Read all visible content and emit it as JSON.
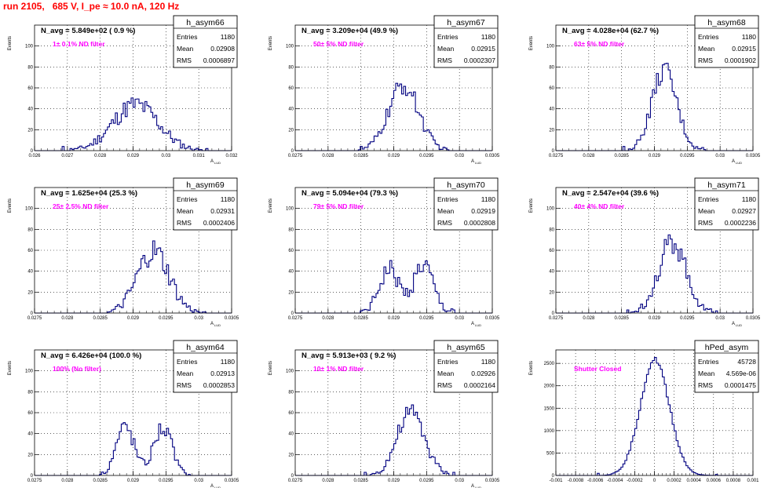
{
  "page": {
    "run_title": "run 2105,   685 V, I_pe ≈ 10.0 nA, 120 Hz"
  },
  "stats_labels": [
    "Entries",
    "Mean",
    "RMS"
  ],
  "colors": {
    "histogram_line": "#000080",
    "annotation_magenta": "#ff00ff",
    "title_red": "#ff0000",
    "grid": "#000000"
  },
  "chart_data": [
    {
      "type": "histogram",
      "name": "h_asym66",
      "navg_label": "N_avg = 5.849e+02 ( 0.9 %)",
      "annotation": "1± 0.1% ND filter",
      "stats": {
        "entries": "1180",
        "mean": "0.02908",
        "rms": "0.0006897"
      },
      "ylabel": "Events",
      "xlabel": "A_LUD",
      "xlim": [
        0.026,
        0.032
      ],
      "ylim": [
        0,
        120
      ],
      "xticks": [
        "0.026",
        "0.027",
        "0.028",
        "0.029",
        "0.03",
        "0.031",
        "0.032"
      ],
      "yticks": [
        "0",
        "20",
        "40",
        "60",
        "80",
        "100"
      ],
      "grid": true,
      "shape": {
        "peaks": [
          {
            "mu": 0.02908,
            "sigma": 0.00069,
            "height": 44
          }
        ],
        "noise": 7
      }
    },
    {
      "type": "histogram",
      "name": "h_asym67",
      "navg_label": "N_avg = 3.209e+04 (49.9 %)",
      "annotation": "50± 5% ND filter",
      "stats": {
        "entries": "1180",
        "mean": "0.02915",
        "rms": "0.0002307"
      },
      "ylabel": "Events",
      "xlabel": "A_LUD",
      "xlim": [
        0.0275,
        0.0305
      ],
      "ylim": [
        0,
        120
      ],
      "xticks": [
        "0.0275",
        "0.028",
        "0.0285",
        "0.029",
        "0.0295",
        "0.03",
        "0.0305"
      ],
      "yticks": [
        "0",
        "20",
        "40",
        "60",
        "80",
        "100"
      ],
      "grid": true,
      "shape": {
        "peaks": [
          {
            "mu": 0.02915,
            "sigma": 0.00023,
            "height": 62
          }
        ],
        "noise": 7
      }
    },
    {
      "type": "histogram",
      "name": "h_asym68",
      "navg_label": "N_avg = 4.028e+04 (62.7 %)",
      "annotation": "63± 5% ND filter",
      "stats": {
        "entries": "1180",
        "mean": "0.02915",
        "rms": "0.0001902"
      },
      "ylabel": "Events",
      "xlabel": "A_LUD",
      "xlim": [
        0.0275,
        0.0305
      ],
      "ylim": [
        0,
        120
      ],
      "xticks": [
        "0.0275",
        "0.028",
        "0.0285",
        "0.029",
        "0.0295",
        "0.03",
        "0.0305"
      ],
      "yticks": [
        "0",
        "20",
        "40",
        "60",
        "80",
        "100"
      ],
      "grid": true,
      "shape": {
        "peaks": [
          {
            "mu": 0.02915,
            "sigma": 0.00019,
            "height": 76
          }
        ],
        "noise": 7
      }
    },
    {
      "type": "histogram",
      "name": "h_asym69",
      "navg_label": "N_avg = 1.625e+04 (25.3 %)",
      "annotation": "25± 2.5% ND filter",
      "stats": {
        "entries": "1180",
        "mean": "0.02931",
        "rms": "0.0002406"
      },
      "ylabel": "Events",
      "xlabel": "A_LUD",
      "xlim": [
        0.0275,
        0.0305
      ],
      "ylim": [
        0,
        120
      ],
      "xticks": [
        "0.0275",
        "0.028",
        "0.0285",
        "0.029",
        "0.0295",
        "0.03",
        "0.0305"
      ],
      "yticks": [
        "0",
        "20",
        "40",
        "60",
        "80",
        "100"
      ],
      "grid": true,
      "shape": {
        "peaks": [
          {
            "mu": 0.02931,
            "sigma": 0.00024,
            "height": 58
          }
        ],
        "noise": 9
      }
    },
    {
      "type": "histogram",
      "name": "h_asym70",
      "navg_label": "N_avg = 5.094e+04 (79.3 %)",
      "annotation": "79± 5% ND filter",
      "stats": {
        "entries": "1180",
        "mean": "0.02919",
        "rms": "0.0002808"
      },
      "ylabel": "Events",
      "xlabel": "A_LUD",
      "xlim": [
        0.0275,
        0.0305
      ],
      "ylim": [
        0,
        120
      ],
      "xticks": [
        "0.0275",
        "0.028",
        "0.0285",
        "0.029",
        "0.0295",
        "0.03",
        "0.0305"
      ],
      "yticks": [
        "0",
        "20",
        "40",
        "60",
        "80",
        "100"
      ],
      "grid": true,
      "shape": {
        "peaks": [
          {
            "mu": 0.02893,
            "sigma": 0.00015,
            "height": 42
          },
          {
            "mu": 0.02945,
            "sigma": 0.00015,
            "height": 46
          }
        ],
        "noise": 7
      }
    },
    {
      "type": "histogram",
      "name": "h_asym71",
      "navg_label": "N_avg = 2.547e+04 (39.6 %)",
      "annotation": "40± 4% ND filter",
      "stats": {
        "entries": "1180",
        "mean": "0.02927",
        "rms": "0.0002236"
      },
      "ylabel": "Events",
      "xlabel": "A_LUD",
      "xlim": [
        0.0275,
        0.0305
      ],
      "ylim": [
        0,
        120
      ],
      "xticks": [
        "0.0275",
        "0.028",
        "0.0285",
        "0.029",
        "0.0295",
        "0.03",
        "0.0305"
      ],
      "yticks": [
        "0",
        "20",
        "40",
        "60",
        "80",
        "100"
      ],
      "grid": true,
      "shape": {
        "peaks": [
          {
            "mu": 0.02927,
            "sigma": 0.00021,
            "height": 68
          }
        ],
        "noise": 8
      }
    },
    {
      "type": "histogram",
      "name": "h_asym64",
      "navg_label": "N_avg = 6.426e+04 (100.0 %)",
      "annotation": "100% (No filter)",
      "stats": {
        "entries": "1180",
        "mean": "0.02913",
        "rms": "0.0002853"
      },
      "ylabel": "Events",
      "xlabel": "A_LUD",
      "xlim": [
        0.0275,
        0.0305
      ],
      "ylim": [
        0,
        120
      ],
      "xticks": [
        "0.0275",
        "0.028",
        "0.0285",
        "0.029",
        "0.0295",
        "0.03",
        "0.0305"
      ],
      "yticks": [
        "0",
        "20",
        "40",
        "60",
        "80",
        "100"
      ],
      "grid": true,
      "shape": {
        "peaks": [
          {
            "mu": 0.02888,
            "sigma": 0.00014,
            "height": 47
          },
          {
            "mu": 0.02945,
            "sigma": 0.00014,
            "height": 46
          }
        ],
        "noise": 6
      }
    },
    {
      "type": "histogram",
      "name": "h_asym65",
      "navg_label": "N_avg = 5.913e+03 ( 9.2 %)",
      "annotation": "10± 1% ND filter",
      "stats": {
        "entries": "1180",
        "mean": "0.02926",
        "rms": "0.0002164"
      },
      "ylabel": "Events",
      "xlabel": "A_LUD",
      "xlim": [
        0.0275,
        0.0305
      ],
      "ylim": [
        0,
        120
      ],
      "xticks": [
        "0.0275",
        "0.028",
        "0.0285",
        "0.029",
        "0.0295",
        "0.03",
        "0.0305"
      ],
      "yticks": [
        "0",
        "20",
        "40",
        "60",
        "80",
        "100"
      ],
      "grid": true,
      "shape": {
        "peaks": [
          {
            "mu": 0.02926,
            "sigma": 0.00021,
            "height": 60
          }
        ],
        "noise": 7
      }
    },
    {
      "type": "histogram",
      "name": "hPed_asym",
      "navg_label": "",
      "annotation": "Shutter Closed",
      "stats": {
        "entries": "45728",
        "mean": "4.569e-06",
        "rms": "0.0001475"
      },
      "ylabel": "Events",
      "xlabel": "",
      "xlim": [
        -0.001,
        0.001
      ],
      "ylim": [
        0,
        2800
      ],
      "xticks": [
        "-0.001",
        "-0.0008",
        "-0.0006",
        "-0.0004",
        "-0.0002",
        "0",
        "0.0002",
        "0.0004",
        "0.0006",
        "0.0008",
        "0.001"
      ],
      "yticks": [
        "0",
        "500",
        "1000",
        "1500",
        "2000",
        "2500"
      ],
      "grid": true,
      "shape": {
        "peaks": [
          {
            "mu": 4.6e-06,
            "sigma": 0.0001475,
            "height": 2580
          }
        ],
        "noise": 40
      }
    }
  ]
}
